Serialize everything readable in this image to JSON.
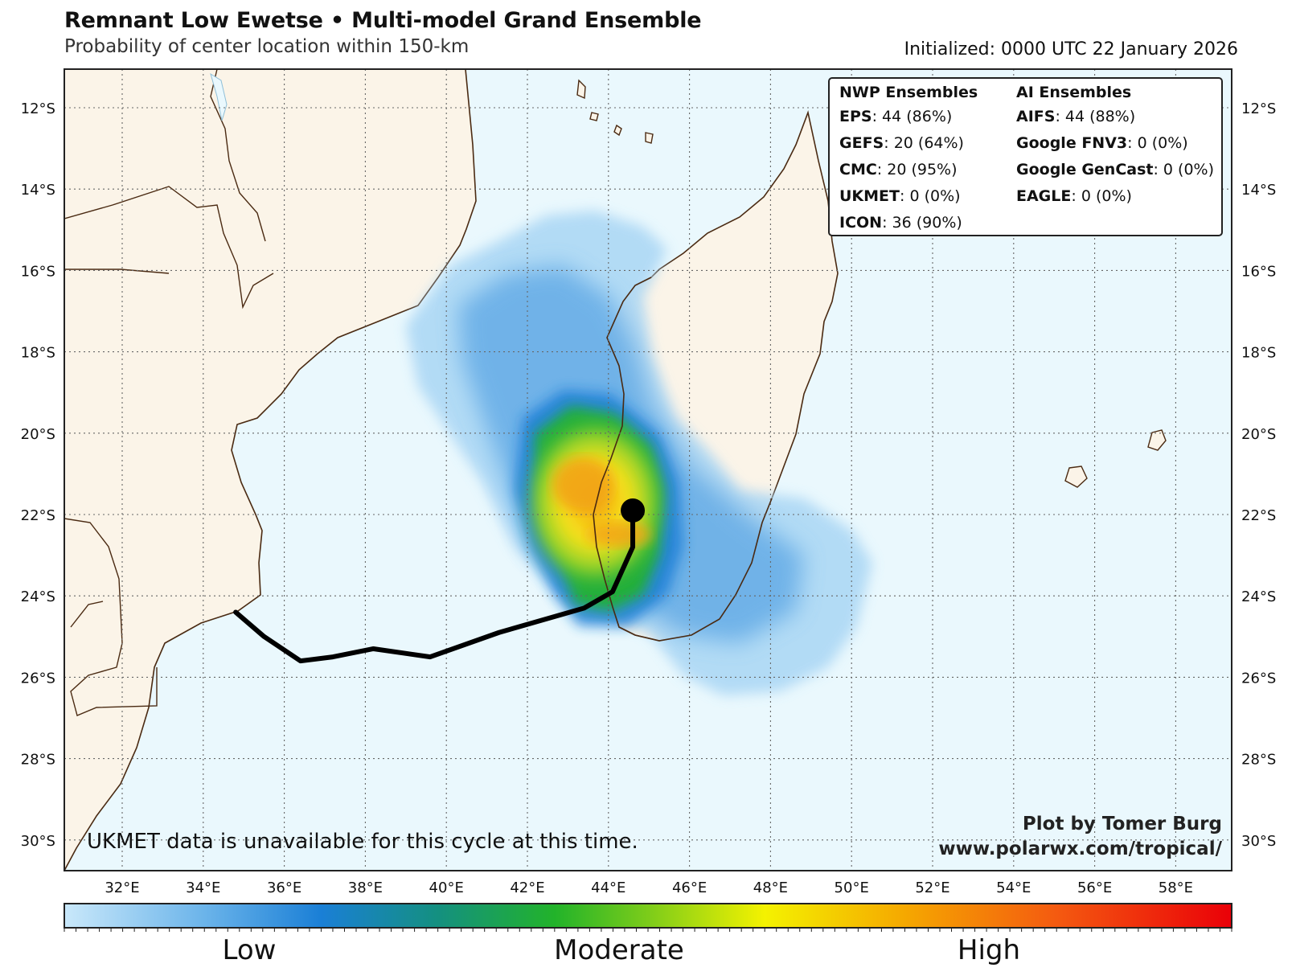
{
  "header": {
    "title": "Remnant Low Ewetse • Multi-model Grand Ensemble",
    "subtitle": "Probability of center location within 150-km",
    "initialized": "Initialized: 0000 UTC 22 January 2026"
  },
  "map": {
    "lat_labels": [
      "12°S",
      "14°S",
      "16°S",
      "18°S",
      "20°S",
      "22°S",
      "24°S",
      "26°S",
      "28°S",
      "30°S"
    ],
    "lon_labels": [
      "32°E",
      "34°E",
      "36°E",
      "38°E",
      "40°E",
      "42°E",
      "44°E",
      "46°E",
      "48°E",
      "50°E",
      "52°E",
      "54°E",
      "56°E",
      "58°E"
    ],
    "colors": {
      "ocean": "#eaf8fd",
      "land": "#fbf4e8",
      "coast": "#4a2a12",
      "track": "#000000"
    },
    "track_lonlat": [
      [
        34.8,
        -24.4
      ],
      [
        35.5,
        -25.0
      ],
      [
        36.4,
        -25.6
      ],
      [
        37.2,
        -25.5
      ],
      [
        38.2,
        -25.3
      ],
      [
        39.6,
        -25.5
      ],
      [
        41.3,
        -24.9
      ],
      [
        43.4,
        -24.3
      ],
      [
        44.1,
        -23.9
      ],
      [
        44.6,
        -22.8
      ],
      [
        44.6,
        -21.9
      ]
    ],
    "current_position": [
      44.6,
      -21.9
    ]
  },
  "legend": {
    "nwp_title": "NWP Ensembles",
    "ai_title": "AI Ensembles",
    "nwp": [
      {
        "model": "EPS",
        "value": ": 44 (86%)"
      },
      {
        "model": "GEFS",
        "value": ": 20 (64%)"
      },
      {
        "model": "CMC",
        "value": ": 20 (95%)"
      },
      {
        "model": "UKMET",
        "value": ": 0 (0%)"
      },
      {
        "model": "ICON",
        "value": ": 36 (90%)"
      }
    ],
    "ai": [
      {
        "model": "AIFS",
        "value": ": 44 (88%)"
      },
      {
        "model": "Google FNV3",
        "value": ": 0 (0%)"
      },
      {
        "model": "Google GenCast",
        "value": ": 0 (0%)"
      },
      {
        "model": "EAGLE",
        "value": ": 0 (0%)"
      }
    ]
  },
  "note": "UKMET data is unavailable for this cycle at this time.",
  "credit": {
    "line1": "Plot by Tomer Burg",
    "line2": "www.polarwx.com/tropical/"
  },
  "colorbar": {
    "low": "Low",
    "moderate": "Moderate",
    "high": "High"
  }
}
